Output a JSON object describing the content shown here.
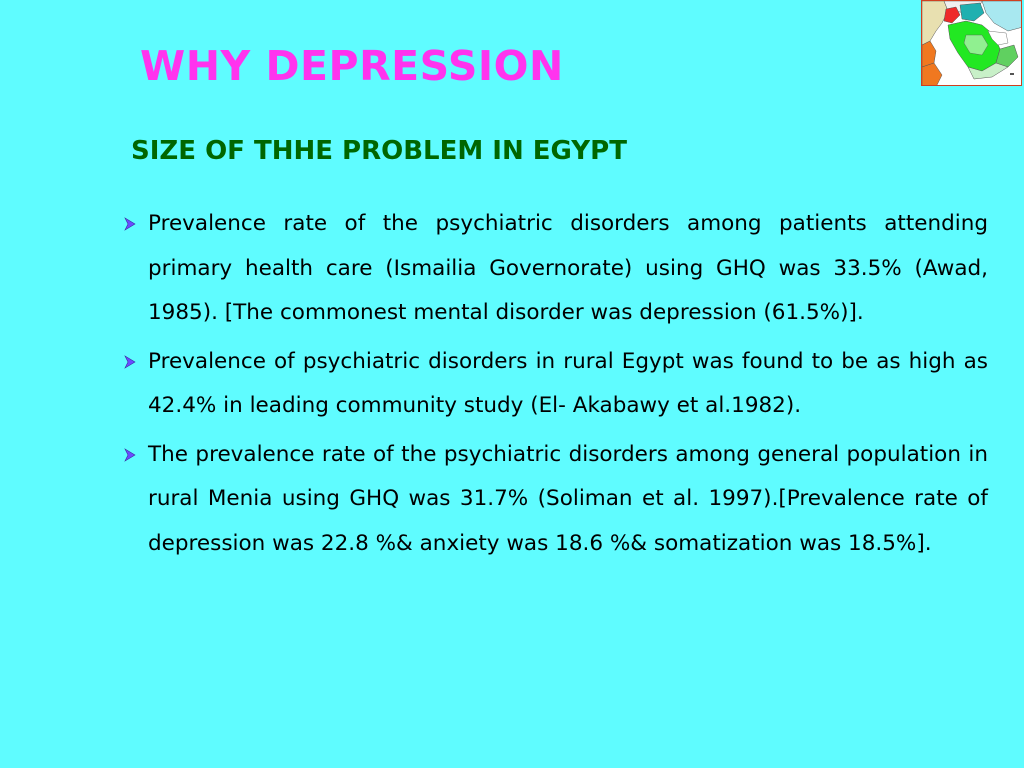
{
  "slide": {
    "title": "WHY DEPRESSION",
    "subtitle": "SIZE OF THHE PROBLEM IN EGYPT",
    "bullets": [
      "Prevalence rate of the psychiatric disorders among patients attending primary health care (Ismailia Governorate) using GHQ was 33.5% (Awad, 1985). [The commonest mental disorder was depression (61.5%)].",
      "Prevalence of psychiatric disorders in rural Egypt was found to be as high as 42.4% in leading community study (El- Akabawy et al.1982).",
      "The prevalence rate of the psychiatric disorders among general population in rural Menia using GHQ was 31.7% (Soliman et al. 1997).[Prevalence rate of depression was 22.8 %& anxiety was 18.6 %& somatization was 18.5%]."
    ]
  },
  "colors": {
    "background": "#5ffcff",
    "title": "#ff33ee",
    "subtitle": "#006600",
    "bullet_marker": "#6a4cff",
    "body_text": "#000000"
  },
  "icons": {
    "bullet": "arrow-bullet-icon",
    "map": "middle-east-map-icon"
  }
}
